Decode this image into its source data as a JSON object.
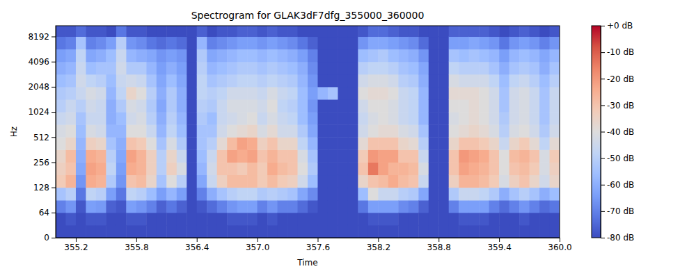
{
  "chart_data": {
    "type": "heatmap",
    "title": "Spectrogram for GLAK3dF7dfg_355000_360000",
    "x_label": "Time",
    "y_label": "Hz",
    "log": "y",
    "xlim": [
      355,
      360
    ],
    "xticks": [
      355.2,
      355.8,
      356.4,
      {
        "value": 357,
        "label": "357.0"
      },
      357.6,
      358.2,
      358.8,
      359.4,
      {
        "value": 360,
        "label": "360.0"
      }
    ],
    "ylim": [
      0,
      11025
    ],
    "yticks": [
      0,
      64,
      128,
      256,
      512,
      1024,
      2048,
      4096,
      8192
    ],
    "x_edges": [
      355,
      355.1,
      355.2,
      355.3,
      355.4,
      355.5,
      355.6,
      355.7,
      355.8,
      355.9,
      356,
      356.1,
      356.2,
      356.3,
      356.4,
      356.5,
      356.6,
      356.7,
      356.8,
      356.9,
      357,
      357.1,
      357.2,
      357.3,
      357.4,
      357.5,
      357.6,
      357.7,
      357.8,
      357.9,
      358,
      358.1,
      358.2,
      358.3,
      358.4,
      358.5,
      358.6,
      358.7,
      358.8,
      358.9,
      359,
      359.1,
      359.2,
      359.3,
      359.4,
      359.5,
      359.6,
      359.7,
      359.8,
      359.9,
      360
    ],
    "y_edges": [
      0,
      32,
      64,
      90,
      128,
      181,
      256,
      362,
      512,
      724,
      1024,
      1448,
      2048,
      2896,
      4096,
      5793,
      8192,
      11025
    ],
    "values": [
      [
        -80,
        -80,
        -70,
        -54,
        -32,
        -34,
        -36,
        -40,
        -42,
        -46,
        -50,
        -52,
        -56,
        -60,
        -64,
        -72,
        -78
      ],
      [
        -80,
        -78,
        -66,
        -50,
        -26,
        -30,
        -28,
        -36,
        -40,
        -44,
        -46,
        -50,
        -54,
        -58,
        -62,
        -70,
        -78
      ],
      [
        -80,
        -80,
        -78,
        -72,
        -66,
        -62,
        -60,
        -58,
        -56,
        -54,
        -50,
        -46,
        -44,
        -46,
        -48,
        -54,
        -74
      ],
      [
        -80,
        -78,
        -64,
        -48,
        -24,
        -22,
        -24,
        -34,
        -42,
        -46,
        -44,
        -42,
        -48,
        -56,
        -62,
        -70,
        -78
      ],
      [
        -80,
        -78,
        -65,
        -50,
        -26,
        -24,
        -26,
        -36,
        -44,
        -46,
        -46,
        -44,
        -50,
        -54,
        -60,
        -68,
        -78
      ],
      [
        -80,
        -80,
        -76,
        -64,
        -52,
        -48,
        -50,
        -54,
        -58,
        -60,
        -60,
        -58,
        -56,
        -54,
        -56,
        -64,
        -80
      ],
      [
        -80,
        -80,
        -78,
        -72,
        -66,
        -64,
        -62,
        -60,
        -58,
        -56,
        -52,
        -48,
        -46,
        -44,
        -46,
        -50,
        -72
      ],
      [
        -80,
        -78,
        -64,
        -48,
        -30,
        -24,
        -22,
        -30,
        -40,
        -44,
        -42,
        -36,
        -44,
        -52,
        -58,
        -66,
        -78
      ],
      [
        -80,
        -78,
        -66,
        -50,
        -28,
        -26,
        -26,
        -32,
        -40,
        -42,
        -44,
        -40,
        -46,
        -52,
        -60,
        -68,
        -78
      ],
      [
        -80,
        -80,
        -70,
        -56,
        -36,
        -34,
        -34,
        -40,
        -46,
        -50,
        -52,
        -50,
        -54,
        -58,
        -62,
        -72,
        -80
      ],
      [
        -80,
        -80,
        -76,
        -64,
        -54,
        -50,
        -50,
        -54,
        -58,
        -60,
        -62,
        -60,
        -62,
        -64,
        -66,
        -74,
        -80
      ],
      [
        -80,
        -80,
        -72,
        -58,
        -40,
        -34,
        -36,
        -42,
        -48,
        -50,
        -52,
        -52,
        -56,
        -60,
        -64,
        -72,
        -80
      ],
      [
        -80,
        -80,
        -76,
        -64,
        -50,
        -42,
        -46,
        -52,
        -56,
        -58,
        -60,
        -60,
        -62,
        -64,
        -66,
        -74,
        -80
      ],
      [
        -80,
        -80,
        -80,
        -80,
        -80,
        -80,
        -80,
        -80,
        -80,
        -80,
        -80,
        -80,
        -80,
        -80,
        -80,
        -80,
        -80
      ],
      [
        -80,
        -80,
        -78,
        -70,
        -62,
        -58,
        -56,
        -54,
        -54,
        -52,
        -50,
        -48,
        -48,
        -50,
        -52,
        -58,
        -76
      ],
      [
        -80,
        -80,
        -74,
        -60,
        -46,
        -44,
        -46,
        -50,
        -54,
        -56,
        -52,
        -50,
        -54,
        -58,
        -62,
        -70,
        -80
      ],
      [
        -80,
        -80,
        -70,
        -54,
        -34,
        -30,
        -30,
        -38,
        -44,
        -46,
        -46,
        -48,
        -52,
        -56,
        -60,
        -68,
        -78
      ],
      [
        -80,
        -78,
        -66,
        -50,
        -28,
        -30,
        -22,
        -28,
        -40,
        -44,
        -42,
        -44,
        -50,
        -54,
        -58,
        -66,
        -78
      ],
      [
        -80,
        -78,
        -64,
        -48,
        -28,
        -32,
        -24,
        -22,
        -38,
        -42,
        -42,
        -44,
        -48,
        -52,
        -56,
        -64,
        -76
      ],
      [
        -80,
        -78,
        -64,
        -48,
        -28,
        -28,
        -22,
        -24,
        -36,
        -40,
        -42,
        -44,
        -48,
        -52,
        -56,
        -64,
        -76
      ],
      [
        -80,
        -80,
        -70,
        -52,
        -32,
        -32,
        -30,
        -34,
        -42,
        -46,
        -44,
        -46,
        -50,
        -54,
        -58,
        -66,
        -78
      ],
      [
        -80,
        -78,
        -66,
        -50,
        -28,
        -24,
        -26,
        -30,
        -38,
        -42,
        -40,
        -42,
        -48,
        -52,
        -56,
        -64,
        -76
      ],
      [
        -80,
        -80,
        -70,
        -52,
        -32,
        -28,
        -30,
        -36,
        -44,
        -46,
        -48,
        -46,
        -50,
        -54,
        -58,
        -66,
        -78
      ],
      [
        -80,
        -80,
        -70,
        -54,
        -34,
        -30,
        -30,
        -36,
        -44,
        -48,
        -50,
        -48,
        -52,
        -56,
        -60,
        -68,
        -78
      ],
      [
        -80,
        -80,
        -74,
        -62,
        -44,
        -40,
        -42,
        -48,
        -52,
        -56,
        -56,
        -56,
        -58,
        -60,
        -64,
        -72,
        -80
      ],
      [
        -80,
        -80,
        -78,
        -68,
        -56,
        -52,
        -54,
        -58,
        -62,
        -64,
        -66,
        -64,
        -66,
        -68,
        -70,
        -76,
        -80
      ],
      [
        -80,
        -80,
        -80,
        -80,
        -80,
        -80,
        -80,
        -80,
        -80,
        -80,
        -80,
        -58,
        -80,
        -80,
        -80,
        -80,
        -80
      ],
      [
        -80,
        -80,
        -80,
        -80,
        -80,
        -80,
        -80,
        -80,
        -80,
        -80,
        -80,
        -54,
        -80,
        -80,
        -80,
        -80,
        -80
      ],
      [
        -80,
        -80,
        -80,
        -80,
        -80,
        -80,
        -80,
        -80,
        -80,
        -80,
        -80,
        -80,
        -80,
        -80,
        -80,
        -80,
        -80
      ],
      [
        -80,
        -80,
        -80,
        -80,
        -80,
        -80,
        -80,
        -80,
        -80,
        -80,
        -80,
        -80,
        -80,
        -80,
        -80,
        -80,
        -80
      ],
      [
        -80,
        -80,
        -72,
        -56,
        -36,
        -30,
        -32,
        -38,
        -44,
        -46,
        -44,
        -40,
        -44,
        -50,
        -56,
        -66,
        -78
      ],
      [
        -80,
        -78,
        -64,
        -40,
        -30,
        -14,
        -20,
        -30,
        -40,
        -42,
        -40,
        -38,
        -42,
        -48,
        -54,
        -62,
        -74
      ],
      [
        -80,
        -78,
        -64,
        -46,
        -28,
        -22,
        -22,
        -30,
        -38,
        -40,
        -40,
        -38,
        -42,
        -48,
        -52,
        -62,
        -74
      ],
      [
        -80,
        -78,
        -64,
        -46,
        -24,
        -26,
        -22,
        -30,
        -38,
        -42,
        -42,
        -40,
        -44,
        -50,
        -56,
        -64,
        -76
      ],
      [
        -80,
        -80,
        -68,
        -50,
        -28,
        -26,
        -30,
        -36,
        -42,
        -46,
        -46,
        -46,
        -50,
        -54,
        -58,
        -66,
        -78
      ],
      [
        -80,
        -80,
        -70,
        -52,
        -30,
        -28,
        -30,
        -38,
        -44,
        -48,
        -48,
        -48,
        -52,
        -56,
        -60,
        -68,
        -78
      ],
      [
        -80,
        -80,
        -76,
        -62,
        -46,
        -42,
        -46,
        -50,
        -54,
        -58,
        -58,
        -58,
        -60,
        -62,
        -66,
        -74,
        -80
      ],
      [
        -80,
        -80,
        -80,
        -80,
        -80,
        -80,
        -80,
        -80,
        -80,
        -80,
        -80,
        -80,
        -80,
        -80,
        -80,
        -80,
        -80
      ],
      [
        -80,
        -80,
        -80,
        -80,
        -80,
        -80,
        -80,
        -80,
        -80,
        -80,
        -80,
        -80,
        -80,
        -80,
        -80,
        -80,
        -80
      ],
      [
        -80,
        -80,
        -70,
        -52,
        -34,
        -30,
        -30,
        -36,
        -40,
        -42,
        -40,
        -38,
        -42,
        -48,
        -54,
        -64,
        -76
      ],
      [
        -80,
        -78,
        -64,
        -46,
        -26,
        -22,
        -20,
        -30,
        -38,
        -40,
        -40,
        -38,
        -44,
        -50,
        -56,
        -64,
        -76
      ],
      [
        -80,
        -78,
        -64,
        -46,
        -26,
        -24,
        -22,
        -30,
        -36,
        -38,
        -38,
        -38,
        -44,
        -50,
        -54,
        -62,
        -76
      ],
      [
        -80,
        -78,
        -64,
        -48,
        -28,
        -26,
        -24,
        -32,
        -38,
        -40,
        -40,
        -40,
        -44,
        -50,
        -56,
        -64,
        -76
      ],
      [
        -80,
        -80,
        -70,
        -52,
        -32,
        -30,
        -30,
        -36,
        -42,
        -44,
        -44,
        -44,
        -48,
        -54,
        -58,
        -66,
        -78
      ],
      [
        -80,
        -80,
        -74,
        -60,
        -42,
        -40,
        -40,
        -46,
        -50,
        -52,
        -54,
        -54,
        -56,
        -60,
        -64,
        -72,
        -80
      ],
      [
        -80,
        -80,
        -70,
        -54,
        -34,
        -30,
        -28,
        -36,
        -42,
        -44,
        -44,
        -44,
        -48,
        -54,
        -58,
        -66,
        -78
      ],
      [
        -80,
        -78,
        -66,
        -50,
        -30,
        -28,
        -26,
        -32,
        -40,
        -42,
        -42,
        -42,
        -46,
        -52,
        -56,
        -64,
        -76
      ],
      [
        -80,
        -80,
        -70,
        -54,
        -36,
        -32,
        -30,
        -38,
        -44,
        -46,
        -46,
        -46,
        -50,
        -54,
        -58,
        -66,
        -78
      ],
      [
        -80,
        -80,
        -74,
        -60,
        -44,
        -42,
        -42,
        -48,
        -52,
        -54,
        -54,
        -54,
        -56,
        -60,
        -62,
        -70,
        -80
      ],
      [
        -80,
        -80,
        -72,
        -56,
        -36,
        -34,
        -32,
        -38,
        -44,
        -46,
        -46,
        -46,
        -50,
        -54,
        -58,
        -66,
        -78
      ]
    ],
    "clim": [
      -80,
      0
    ],
    "cticks": [
      {
        "value": 0,
        "label": "+0 dB"
      },
      {
        "value": -10,
        "label": "-10 dB"
      },
      {
        "value": -20,
        "label": "-20 dB"
      },
      {
        "value": -30,
        "label": "-30 dB"
      },
      {
        "value": -40,
        "label": "-40 dB"
      },
      {
        "value": -50,
        "label": "-50 dB"
      },
      {
        "value": -60,
        "label": "-60 dB"
      },
      {
        "value": -70,
        "label": "-70 dB"
      },
      {
        "value": -80,
        "label": "-80 dB"
      }
    ]
  }
}
